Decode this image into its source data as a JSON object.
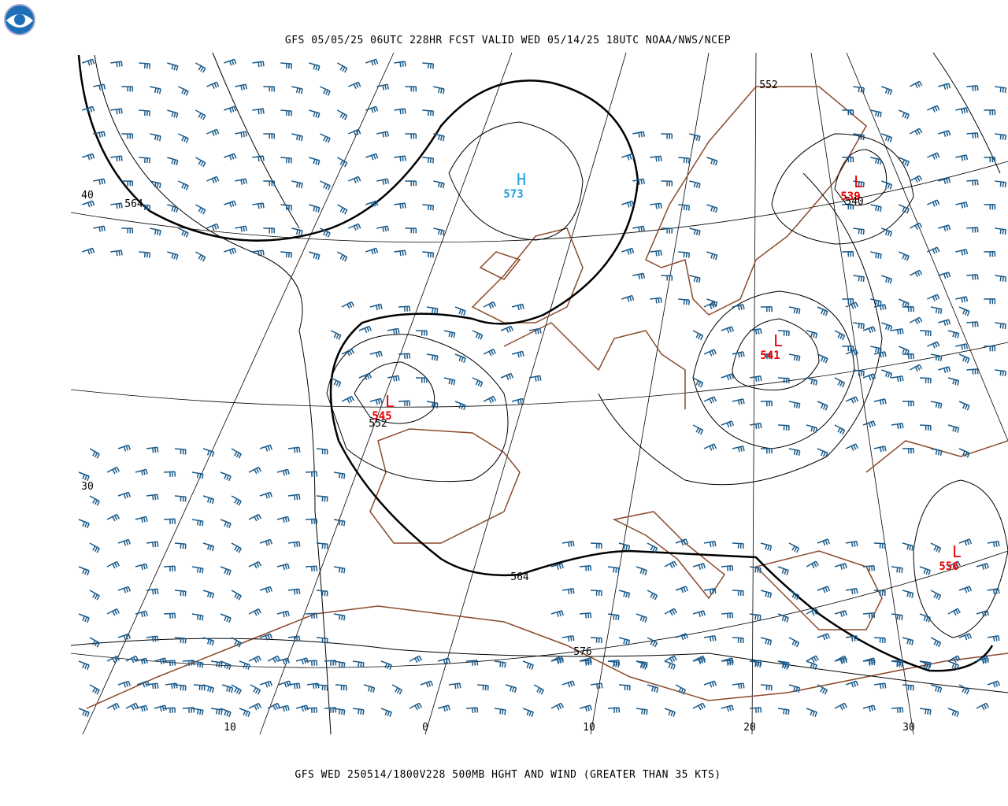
{
  "header": {
    "title": "GFS 05/05/25 06UTC 228HR FCST VALID WED 05/14/25 18UTC NOAA/NWS/NCEP"
  },
  "footer": {
    "caption": "GFS WED 250514/1800V228 500MB HGHT AND WIND (GREATER THAN 35 KTS)"
  },
  "map": {
    "pressure_centers": [
      {
        "label": "H",
        "value": "573"
      },
      {
        "label": "L",
        "value": "545"
      },
      {
        "label": "L",
        "value": "541"
      },
      {
        "label": "L",
        "value": "539"
      },
      {
        "label": "L",
        "value": "556"
      }
    ],
    "contour_labels": [
      "552",
      "564",
      "552",
      "540",
      "564",
      "576"
    ],
    "latitude_labels": [
      "40",
      "30"
    ],
    "longitude_labels": [
      "10",
      "0",
      "10",
      "20",
      "30"
    ]
  }
}
